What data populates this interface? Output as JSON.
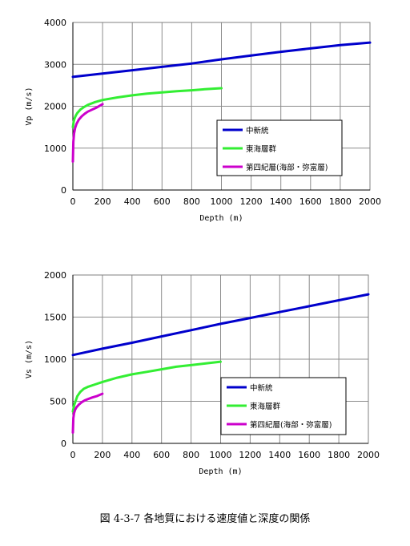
{
  "caption": "図 4-3-7 各地質における速度値と深度の関係",
  "series_colors": [
    "#0000cc",
    "#33ee33",
    "#cc00cc"
  ],
  "chart_data": [
    {
      "type": "line",
      "title": "",
      "xlabel": "Depth (m)",
      "ylabel": "Vp (m/s)",
      "xlim": [
        0,
        2000
      ],
      "ylim": [
        0,
        4000
      ],
      "xticks": [
        0,
        200,
        400,
        600,
        800,
        1000,
        1200,
        1400,
        1600,
        1800,
        2000
      ],
      "yticks": [
        0,
        1000,
        2000,
        3000,
        4000
      ],
      "grid": true,
      "legend_position": "right",
      "series": [
        {
          "name": "中新統",
          "x": [
            0,
            200,
            400,
            600,
            800,
            1000,
            1200,
            1400,
            1600,
            1800,
            2000
          ],
          "values": [
            2700,
            2780,
            2860,
            2940,
            3020,
            3120,
            3210,
            3300,
            3380,
            3460,
            3520
          ]
        },
        {
          "name": "東海層群",
          "x": [
            0,
            5,
            10,
            20,
            30,
            50,
            75,
            100,
            150,
            200,
            300,
            400,
            500,
            600,
            700,
            800,
            900,
            1000
          ],
          "values": [
            1500,
            1620,
            1700,
            1780,
            1840,
            1920,
            1980,
            2030,
            2100,
            2150,
            2210,
            2260,
            2300,
            2330,
            2360,
            2380,
            2410,
            2430
          ]
        },
        {
          "name": "第四紀層(海部・弥富層)",
          "x": [
            0,
            3,
            8,
            15,
            25,
            40,
            60,
            80,
            100,
            130,
            160,
            200
          ],
          "values": [
            680,
            1150,
            1350,
            1480,
            1580,
            1680,
            1760,
            1820,
            1870,
            1920,
            1970,
            2050
          ]
        }
      ]
    },
    {
      "type": "line",
      "title": "",
      "xlabel": "Depth (m)",
      "ylabel": "Vs (m/s)",
      "xlim": [
        0,
        2000
      ],
      "ylim": [
        0,
        2000
      ],
      "xticks": [
        0,
        200,
        400,
        600,
        800,
        1000,
        1200,
        1400,
        1600,
        1800,
        2000
      ],
      "yticks": [
        0,
        500,
        1000,
        1500,
        2000
      ],
      "grid": true,
      "legend_position": "right",
      "series": [
        {
          "name": "中新統",
          "x": [
            0,
            200,
            400,
            600,
            800,
            1000,
            1200,
            1400,
            1600,
            1800,
            2000
          ],
          "values": [
            1050,
            1125,
            1195,
            1270,
            1345,
            1420,
            1490,
            1560,
            1630,
            1700,
            1770
          ]
        },
        {
          "name": "東海層群",
          "x": [
            0,
            5,
            10,
            20,
            30,
            50,
            75,
            100,
            150,
            200,
            300,
            400,
            500,
            600,
            700,
            800,
            900,
            1000
          ],
          "values": [
            380,
            420,
            460,
            510,
            560,
            610,
            650,
            670,
            700,
            730,
            780,
            820,
            850,
            880,
            910,
            930,
            950,
            970
          ]
        },
        {
          "name": "第四紀層(海部・弥富層)",
          "x": [
            0,
            3,
            8,
            15,
            25,
            40,
            60,
            80,
            100,
            130,
            160,
            200
          ],
          "values": [
            130,
            300,
            360,
            400,
            430,
            460,
            490,
            510,
            525,
            545,
            560,
            590
          ]
        }
      ]
    }
  ]
}
